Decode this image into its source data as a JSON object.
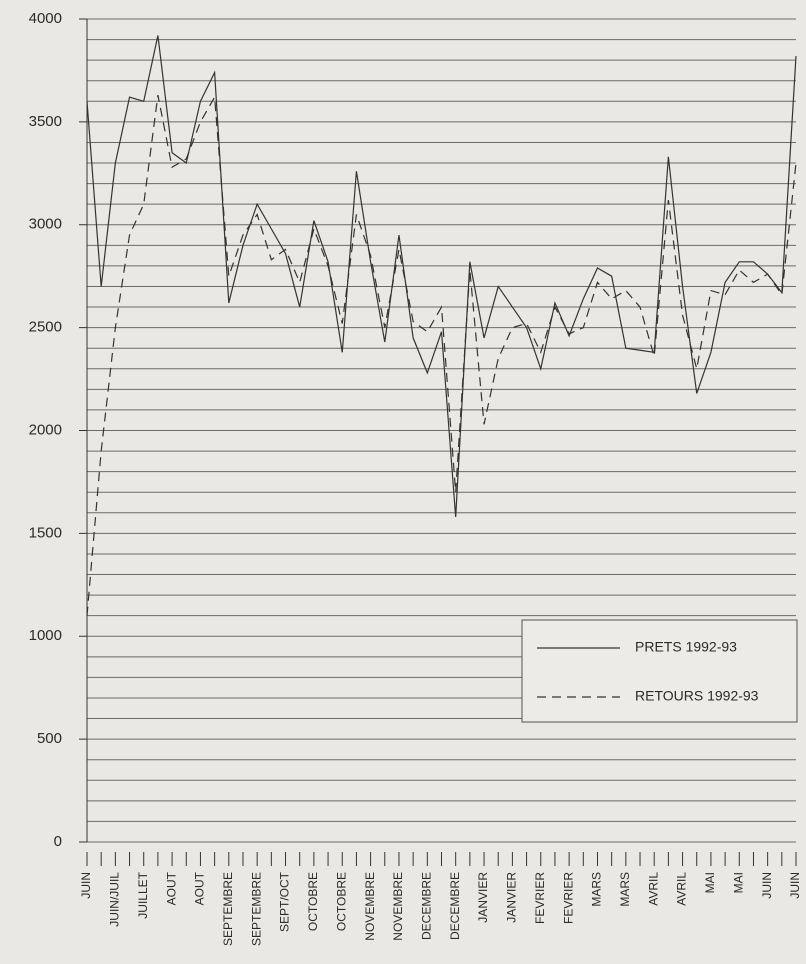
{
  "chart_data": {
    "type": "line",
    "categories": [
      "JUIN",
      null,
      "JUIN/JUIL",
      null,
      "JUILLET",
      null,
      "AOUT",
      null,
      "AOUT",
      null,
      "SEPTEMBRE",
      null,
      "SEPTEMBRE",
      null,
      "SEPT/OCT",
      null,
      "OCTOBRE",
      null,
      "OCTOBRE",
      null,
      "NOVEMBRE",
      null,
      "NOVEMBRE",
      null,
      "DECEMBRE",
      null,
      "DECEMBRE",
      null,
      "JANVIER",
      null,
      "JANVIER",
      null,
      "FEVRIER",
      null,
      "FEVRIER",
      null,
      "MARS",
      null,
      "MARS",
      null,
      "AVRIL",
      null,
      "AVRIL",
      null,
      "MAI",
      null,
      "MAI",
      null,
      "JUIN",
      null,
      "JUIN"
    ],
    "series": [
      {
        "name": "PRETS 1992-93",
        "color": "#333333",
        "dash": "solid",
        "values": [
          3600,
          2700,
          3300,
          3620,
          3600,
          3920,
          3350,
          3300,
          3600,
          3740,
          2620,
          2900,
          3100,
          2980,
          2860,
          2600,
          3020,
          2820,
          2380,
          3260,
          2820,
          2430,
          2950,
          2450,
          2280,
          2480,
          1580,
          2820,
          2450,
          2700,
          2600,
          2500,
          2300,
          2620,
          2460,
          2640,
          2790,
          2750,
          2400,
          2390,
          2380,
          3330,
          2700,
          2180,
          2380,
          2720,
          2820,
          2820,
          2760,
          2670,
          3820
        ]
      },
      {
        "name": "RETOURS 1992-93",
        "color": "#333333",
        "dash": "dashed",
        "values": [
          1100,
          1900,
          2500,
          2950,
          3100,
          3630,
          3280,
          3320,
          3500,
          3620,
          2750,
          2950,
          3050,
          2830,
          2880,
          2720,
          2980,
          2800,
          2520,
          3050,
          2850,
          2500,
          2880,
          2530,
          2480,
          2600,
          1700,
          2780,
          2030,
          2350,
          2500,
          2520,
          2380,
          2600,
          2470,
          2500,
          2720,
          2640,
          2680,
          2600,
          2360,
          3120,
          2560,
          2300,
          2680,
          2660,
          2780,
          2720,
          2760,
          2660,
          3300
        ]
      }
    ],
    "ylim": [
      0,
      4000
    ],
    "yticks": [
      0,
      500,
      1000,
      1500,
      2000,
      2500,
      3000,
      3500,
      4000
    ],
    "minor_yticks": [
      0,
      100,
      200,
      300,
      400,
      500,
      600,
      700,
      800,
      900,
      1000,
      1100,
      1200,
      1300,
      1400,
      1500,
      1600,
      1700,
      1800,
      1900,
      2000,
      2100,
      2200,
      2300,
      2400,
      2500,
      2600,
      2700,
      2800,
      2900,
      3000,
      3100,
      3200,
      3300,
      3400,
      3500,
      3600,
      3700,
      3800,
      3900,
      4000
    ],
    "grid": true,
    "legend_position": "lower right"
  }
}
